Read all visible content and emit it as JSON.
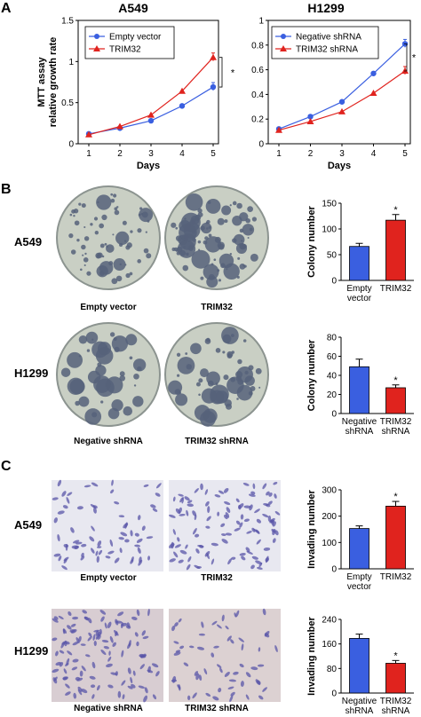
{
  "panels": [
    {
      "label": "A"
    },
    {
      "label": "B"
    },
    {
      "label": "C"
    }
  ],
  "row_labels": {
    "b_top": "A549",
    "b_bottom": "H1299",
    "c_top": "A549",
    "c_bottom": "H1299"
  },
  "captions": {
    "b_top_left": "Empty vector",
    "b_top_right": "TRIM32",
    "b_bottom_left": "Negative shRNA",
    "b_bottom_right": "TRIM32 shRNA",
    "c_top_left": "Empty vector",
    "c_top_right": "TRIM32",
    "c_bottom_left": "Negative shRNA",
    "c_bottom_right": "TRIM32 shRNA"
  },
  "colors": {
    "blue": "#3a5fe0",
    "red": "#e0231e",
    "grid": "#000000",
    "plate": "#c9cfc4",
    "colony": "#56617a",
    "well_bg": "#e9e5ef",
    "cell": "#5a56a8"
  },
  "chart_data": [
    {
      "id": "mtt_a549",
      "type": "line",
      "title": "A549",
      "xlabel": "Days",
      "ylabel": "MTT assay\nrelative growth rate",
      "ylabel_lines": [
        "MTT assay",
        "relative growth rate"
      ],
      "x": [
        1,
        2,
        3,
        4,
        5
      ],
      "xlim": [
        1,
        5
      ],
      "ylim": [
        0,
        1.5
      ],
      "yticks": [
        0,
        0.5,
        1,
        1.5
      ],
      "series": [
        {
          "name": "Empty vector",
          "values": [
            0.12,
            0.19,
            0.28,
            0.46,
            0.69
          ],
          "color": "#3a5fe0",
          "marker": "circle"
        },
        {
          "name": "TRIM32",
          "values": [
            0.11,
            0.21,
            0.35,
            0.64,
            1.05
          ],
          "color": "#e0231e",
          "marker": "triangle"
        }
      ],
      "annotation": "*"
    },
    {
      "id": "mtt_h1299",
      "type": "line",
      "title": "H1299",
      "xlabel": "Days",
      "ylabel": "",
      "x": [
        1,
        2,
        3,
        4,
        5
      ],
      "xlim": [
        1,
        5
      ],
      "ylim": [
        0,
        1
      ],
      "yticks": [
        0,
        0.2,
        0.4,
        0.6,
        0.8,
        1
      ],
      "series": [
        {
          "name": "Negative shRNA",
          "values": [
            0.12,
            0.22,
            0.34,
            0.57,
            0.81
          ],
          "color": "#3a5fe0",
          "marker": "circle"
        },
        {
          "name": "TRIM32 shRNA",
          "values": [
            0.11,
            0.18,
            0.26,
            0.41,
            0.59
          ],
          "color": "#e0231e",
          "marker": "triangle"
        }
      ],
      "annotation": "*"
    },
    {
      "id": "colony_a549",
      "type": "bar",
      "ylabel": "Colony number",
      "categories": [
        [
          "Empty",
          "vector"
        ],
        [
          "TRIM32"
        ]
      ],
      "values": [
        66,
        117
      ],
      "errors": [
        6,
        11
      ],
      "colors": [
        "#3a5fe0",
        "#e0231e"
      ],
      "ylim": [
        0,
        150
      ],
      "yticks": [
        0,
        50,
        100,
        150
      ],
      "annotations": [
        "",
        "*"
      ]
    },
    {
      "id": "colony_h1299",
      "type": "bar",
      "ylabel": "Colony number",
      "categories": [
        [
          "Negative",
          "shRNA"
        ],
        [
          "TRIM32",
          "shRNA"
        ]
      ],
      "values": [
        49,
        27
      ],
      "errors": [
        8,
        3
      ],
      "colors": [
        "#3a5fe0",
        "#e0231e"
      ],
      "ylim": [
        0,
        80
      ],
      "yticks": [
        0,
        20,
        40,
        60,
        80
      ],
      "annotations": [
        "",
        "*"
      ]
    },
    {
      "id": "invasion_a549",
      "type": "bar",
      "ylabel": "Invading number",
      "categories": [
        [
          "Empty",
          "vector"
        ],
        [
          "TRIM32"
        ]
      ],
      "values": [
        153,
        238
      ],
      "errors": [
        10,
        18
      ],
      "colors": [
        "#3a5fe0",
        "#e0231e"
      ],
      "ylim": [
        0,
        300
      ],
      "yticks": [
        0,
        100,
        200,
        300
      ],
      "annotations": [
        "",
        "*"
      ]
    },
    {
      "id": "invasion_h1299",
      "type": "bar",
      "ylabel": "Invading number",
      "categories": [
        [
          "Negative",
          "shRNA"
        ],
        [
          "TRIM32",
          "shRNA"
        ]
      ],
      "values": [
        178,
        97
      ],
      "errors": [
        14,
        9
      ],
      "colors": [
        "#3a5fe0",
        "#e0231e"
      ],
      "ylim": [
        0,
        240
      ],
      "yticks": [
        0,
        80,
        160,
        240
      ],
      "annotations": [
        "",
        "*"
      ]
    }
  ]
}
